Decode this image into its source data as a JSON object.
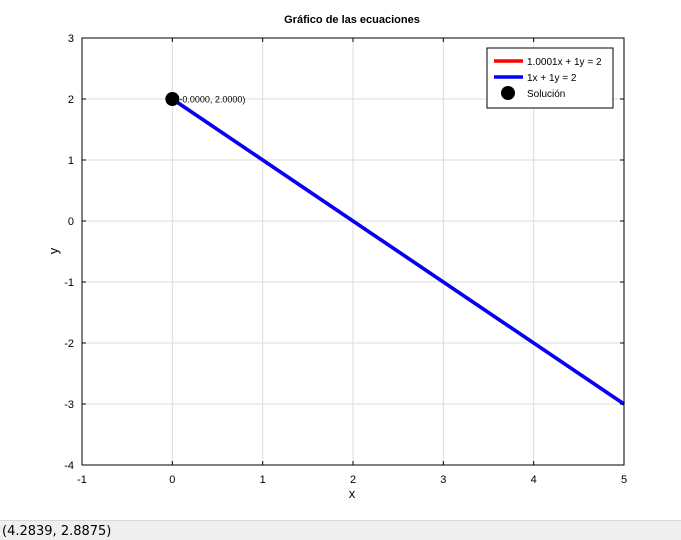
{
  "chart_data": {
    "type": "line",
    "title": "Gráfico de las ecuaciones",
    "xlabel": "x",
    "ylabel": "y",
    "xlim": [
      -1,
      5
    ],
    "ylim": [
      -4,
      3
    ],
    "xticks": [
      -1,
      0,
      1,
      2,
      3,
      4,
      5
    ],
    "yticks": [
      -4,
      -3,
      -2,
      -1,
      0,
      1,
      2,
      3
    ],
    "grid": true,
    "legend_position": "top-right",
    "series": [
      {
        "name": "1.0001x + 1y = 2",
        "color": "#ff0000",
        "x": [
          0,
          5
        ],
        "y": [
          2,
          -3.0005
        ]
      },
      {
        "name": "1x + 1y = 2",
        "color": "#0000ff",
        "x": [
          0,
          5
        ],
        "y": [
          2,
          -3
        ]
      }
    ],
    "solution": {
      "name": "Solución",
      "x": 0,
      "y": 2,
      "color": "#000000",
      "label": "(-0.0000, 2.0000)"
    }
  },
  "status_bar": {
    "coordinates": "(4.2839, 2.8875)"
  }
}
